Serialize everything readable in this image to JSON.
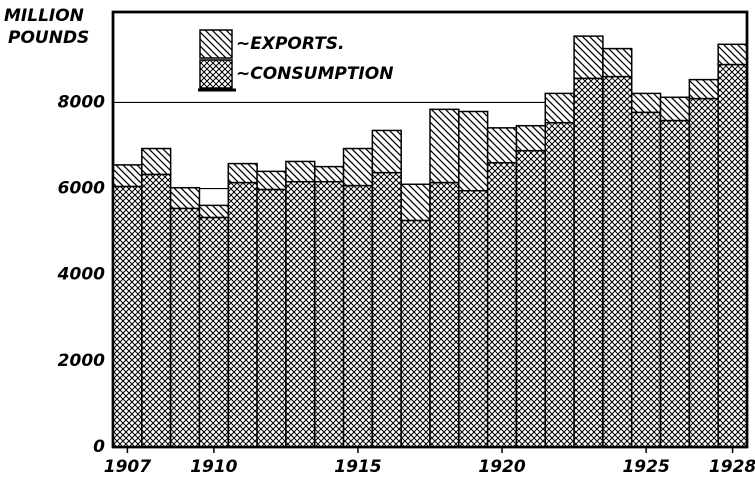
{
  "chart_data": {
    "type": "stacked_bar",
    "y_label": [
      "MILLION",
      "POUNDS"
    ],
    "categories": [
      "1907",
      null,
      null,
      "1910",
      null,
      null,
      null,
      null,
      "1915",
      null,
      null,
      null,
      null,
      "1920",
      null,
      null,
      null,
      null,
      "1925",
      null,
      null,
      "1928"
    ],
    "series": [
      {
        "name": "~CONSUMPTION",
        "color": "#000000",
        "pattern": "crosshatch",
        "values": [
          6050,
          6330,
          5540,
          5330,
          6140,
          5980,
          6160,
          6160,
          6070,
          6370,
          5260,
          6140,
          5950,
          6600,
          6880,
          7530,
          8560,
          8600,
          7770,
          7580,
          8090,
          8880
        ]
      },
      {
        "name": "~EXPORTS.",
        "color": "#000000",
        "pattern": "hatch",
        "values": [
          500,
          600,
          480,
          280,
          440,
          420,
          470,
          350,
          860,
          980,
          840,
          1700,
          1840,
          810,
          580,
          680,
          980,
          650,
          440,
          540,
          440,
          470
        ]
      }
    ],
    "ylim": [
      0,
      10100
    ],
    "yticks": [
      0,
      2000,
      4000,
      6000,
      8000
    ],
    "grid": true
  }
}
